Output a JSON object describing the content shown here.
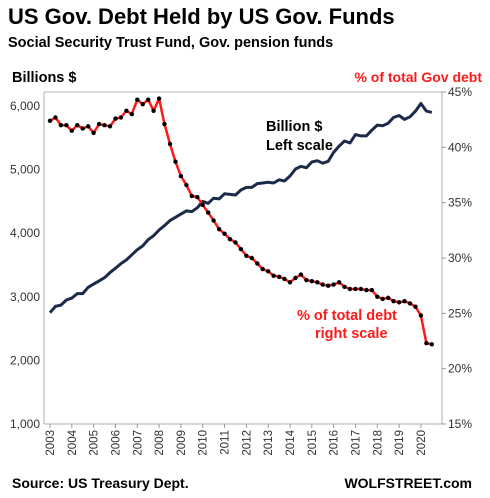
{
  "chart_data": {
    "type": "line",
    "title": "US Gov. Debt Held by US Gov. Funds",
    "subtitle": "Social Security Trust Fund, Gov. pension funds",
    "ylabel_left": "Billions  $",
    "ylabel_right": "% of total Gov debt",
    "ylim_left": [
      1000,
      6000
    ],
    "ylim_right": [
      15,
      45
    ],
    "yticks_left": [
      "1,000",
      "2,000",
      "3,000",
      "4,000",
      "5,000",
      "6,000"
    ],
    "yticks_right": [
      "15%",
      "20%",
      "25%",
      "30%",
      "35%",
      "40%",
      "45%"
    ],
    "xticks": [
      "2003",
      "2004",
      "2005",
      "2006",
      "2007",
      "2008",
      "2009",
      "2010",
      "2011",
      "2012",
      "2013",
      "2014",
      "2015",
      "2016",
      "2017",
      "2018",
      "2019",
      "2020"
    ],
    "xlim": [
      2003,
      2020.6
    ],
    "grid": false,
    "source": "Source: US Treasury Dept.",
    "brand": "WOLFSTREET.com",
    "series": [
      {
        "axis": "left",
        "color": "#1c2b4a",
        "annotation": [
          "Billion $",
          "Left scale"
        ],
        "x": [
          2003.0,
          2003.25,
          2003.5,
          2003.75,
          2004.0,
          2004.25,
          2004.5,
          2004.75,
          2005.0,
          2005.25,
          2005.5,
          2005.75,
          2006.0,
          2006.25,
          2006.5,
          2006.75,
          2007.0,
          2007.25,
          2007.5,
          2007.75,
          2008.0,
          2008.25,
          2008.5,
          2008.75,
          2009.0,
          2009.25,
          2009.5,
          2009.75,
          2010.0,
          2010.25,
          2010.5,
          2010.75,
          2011.0,
          2011.25,
          2011.5,
          2011.75,
          2012.0,
          2012.25,
          2012.5,
          2012.75,
          2013.0,
          2013.25,
          2013.5,
          2013.75,
          2014.0,
          2014.25,
          2014.5,
          2014.75,
          2015.0,
          2015.25,
          2015.5,
          2015.75,
          2016.0,
          2016.25,
          2016.5,
          2016.75,
          2017.0,
          2017.25,
          2017.5,
          2017.75,
          2018.0,
          2018.25,
          2018.5,
          2018.75,
          2019.0,
          2019.25,
          2019.5,
          2019.75,
          2020.0,
          2020.25,
          2020.5
        ],
        "values": [
          2750,
          2850,
          2870,
          2950,
          2980,
          3050,
          3050,
          3150,
          3200,
          3250,
          3300,
          3380,
          3450,
          3520,
          3580,
          3660,
          3740,
          3800,
          3900,
          3960,
          4050,
          4120,
          4200,
          4250,
          4300,
          4350,
          4340,
          4400,
          4500,
          4470,
          4550,
          4540,
          4620,
          4610,
          4600,
          4680,
          4720,
          4720,
          4780,
          4790,
          4800,
          4790,
          4840,
          4820,
          4900,
          5010,
          5050,
          5030,
          5120,
          5140,
          5100,
          5130,
          5270,
          5370,
          5450,
          5420,
          5550,
          5530,
          5530,
          5620,
          5700,
          5690,
          5730,
          5820,
          5850,
          5790,
          5830,
          5920,
          6040,
          5920,
          5900
        ]
      },
      {
        "axis": "right",
        "color": "#ff1a1a",
        "marker_color": "#000000",
        "annotation": [
          "% of total debt",
          "right scale"
        ],
        "x": [
          2003.0,
          2003.25,
          2003.5,
          2003.75,
          2004.0,
          2004.25,
          2004.5,
          2004.75,
          2005.0,
          2005.25,
          2005.5,
          2005.75,
          2006.0,
          2006.25,
          2006.5,
          2006.75,
          2007.0,
          2007.25,
          2007.5,
          2007.75,
          2008.0,
          2008.25,
          2008.5,
          2008.75,
          2009.0,
          2009.25,
          2009.5,
          2009.75,
          2010.0,
          2010.25,
          2010.5,
          2010.75,
          2011.0,
          2011.25,
          2011.5,
          2011.75,
          2012.0,
          2012.25,
          2012.5,
          2012.75,
          2013.0,
          2013.25,
          2013.5,
          2013.75,
          2014.0,
          2014.25,
          2014.5,
          2014.75,
          2015.0,
          2015.25,
          2015.5,
          2015.75,
          2016.0,
          2016.25,
          2016.5,
          2016.75,
          2017.0,
          2017.25,
          2017.5,
          2017.75,
          2018.0,
          2018.25,
          2018.5,
          2018.75,
          2019.0,
          2019.25,
          2019.5,
          2019.75,
          2020.0,
          2020.25,
          2020.5
        ],
        "values": [
          42.4,
          42.7,
          42.0,
          42.0,
          41.5,
          42.0,
          41.7,
          41.9,
          41.3,
          42.1,
          42.0,
          41.9,
          42.6,
          42.7,
          43.3,
          43.0,
          44.3,
          43.9,
          44.3,
          43.3,
          44.4,
          42.1,
          40.3,
          38.7,
          37.4,
          36.6,
          35.6,
          35.5,
          34.8,
          34.1,
          33.4,
          32.6,
          32.2,
          31.7,
          31.4,
          30.8,
          30.2,
          30.0,
          29.5,
          29.0,
          28.8,
          28.4,
          28.3,
          28.1,
          27.8,
          28.2,
          28.5,
          28.0,
          27.9,
          27.8,
          27.6,
          27.5,
          27.6,
          27.8,
          27.4,
          27.2,
          27.2,
          27.2,
          27.1,
          27.1,
          26.5,
          26.3,
          26.4,
          26.1,
          26.0,
          26.1,
          25.9,
          25.6,
          24.8,
          22.3,
          22.2
        ]
      }
    ]
  }
}
